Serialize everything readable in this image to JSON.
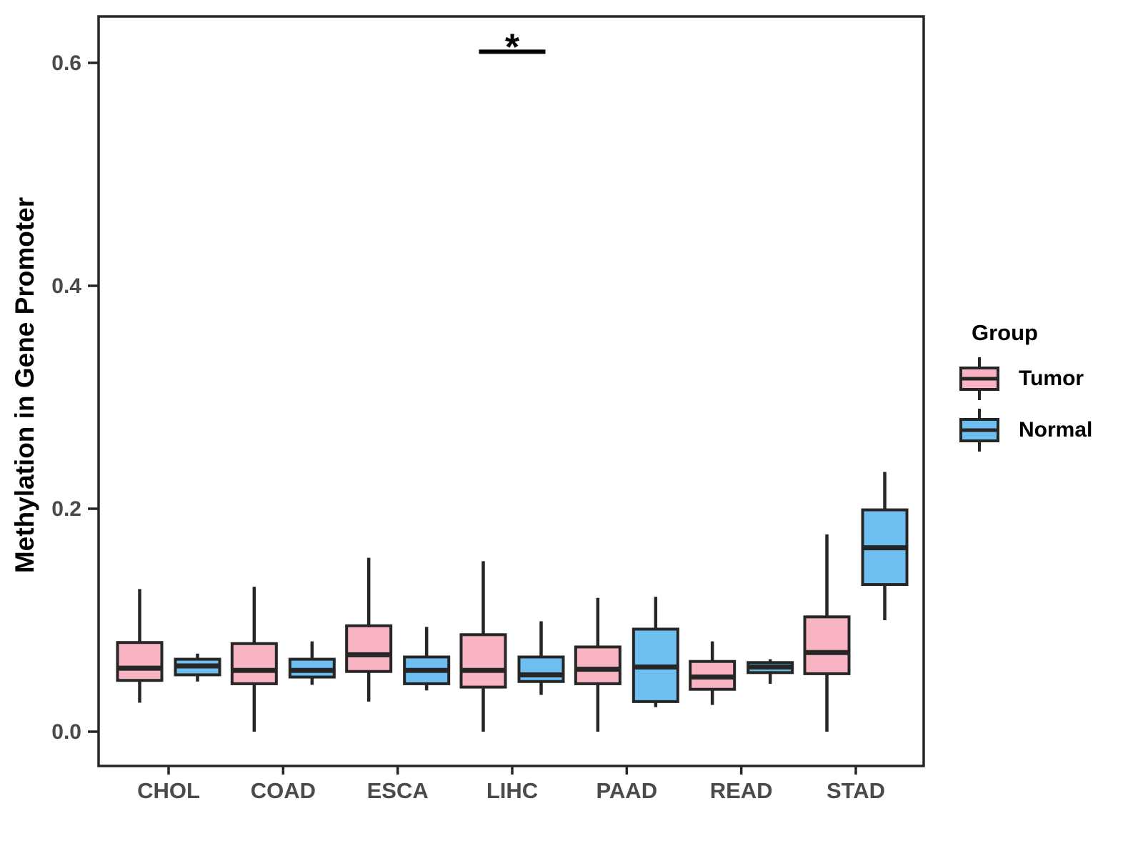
{
  "figure": {
    "y_axis_title": "Methylation in Gene Promoter",
    "legend": {
      "title": "Group",
      "items": [
        {
          "label": "Tumor",
          "color": "#F9B4C3"
        },
        {
          "label": "Normal",
          "color": "#6EBEF0"
        }
      ]
    }
  },
  "chart_data": {
    "type": "boxplot",
    "title": "",
    "xlabel": "",
    "ylabel": "Methylation in Gene Promoter",
    "categories": [
      "CHOL",
      "COAD",
      "ESCA",
      "LIHC",
      "PAAD",
      "READ",
      "STAD"
    ],
    "y_ticks": [
      "0.0",
      "0.2",
      "0.4",
      "0.6"
    ],
    "y_tick_values": [
      0.0,
      0.2,
      0.4,
      0.6
    ],
    "ylim": [
      -0.031,
      0.642
    ],
    "grid": false,
    "legend_position": "right",
    "series": [
      {
        "name": "Tumor",
        "fill": "#F9B4C3",
        "boxes": [
          {
            "category": "CHOL",
            "low": 0.026,
            "q1": 0.046,
            "median": 0.057,
            "q3": 0.08,
            "high": 0.128
          },
          {
            "category": "COAD",
            "low": 0.0,
            "q1": 0.043,
            "median": 0.055,
            "q3": 0.079,
            "high": 0.13
          },
          {
            "category": "ESCA",
            "low": 0.027,
            "q1": 0.054,
            "median": 0.069,
            "q3": 0.095,
            "high": 0.156
          },
          {
            "category": "LIHC",
            "low": 0.0,
            "q1": 0.04,
            "median": 0.055,
            "q3": 0.087,
            "high": 0.153
          },
          {
            "category": "PAAD",
            "low": 0.0,
            "q1": 0.043,
            "median": 0.056,
            "q3": 0.076,
            "high": 0.12
          },
          {
            "category": "READ",
            "low": 0.024,
            "q1": 0.038,
            "median": 0.049,
            "q3": 0.063,
            "high": 0.081
          },
          {
            "category": "STAD",
            "low": 0.0,
            "q1": 0.052,
            "median": 0.071,
            "q3": 0.103,
            "high": 0.177
          }
        ]
      },
      {
        "name": "Normal",
        "fill": "#6EBEF0",
        "boxes": [
          {
            "category": "CHOL",
            "low": 0.045,
            "q1": 0.051,
            "median": 0.059,
            "q3": 0.065,
            "high": 0.07
          },
          {
            "category": "COAD",
            "low": 0.042,
            "q1": 0.049,
            "median": 0.055,
            "q3": 0.065,
            "high": 0.081
          },
          {
            "category": "ESCA",
            "low": 0.037,
            "q1": 0.043,
            "median": 0.055,
            "q3": 0.067,
            "high": 0.094
          },
          {
            "category": "LIHC",
            "low": 0.033,
            "q1": 0.045,
            "median": 0.051,
            "q3": 0.067,
            "high": 0.099
          },
          {
            "category": "PAAD",
            "low": 0.022,
            "q1": 0.027,
            "median": 0.058,
            "q3": 0.092,
            "high": 0.121
          },
          {
            "category": "READ",
            "low": 0.043,
            "q1": 0.053,
            "median": 0.058,
            "q3": 0.062,
            "high": 0.065
          },
          {
            "category": "STAD",
            "low": 0.1,
            "q1": 0.132,
            "median": 0.165,
            "q3": 0.199,
            "high": 0.233
          }
        ]
      }
    ],
    "annotations": [
      {
        "type": "significance-bar",
        "category": "LIHC",
        "label": "*",
        "y": 0.61
      }
    ]
  },
  "style": {
    "box_stroke": "#262626",
    "tick_text_color": "#4a4a4a",
    "axis_color": "#262626"
  }
}
